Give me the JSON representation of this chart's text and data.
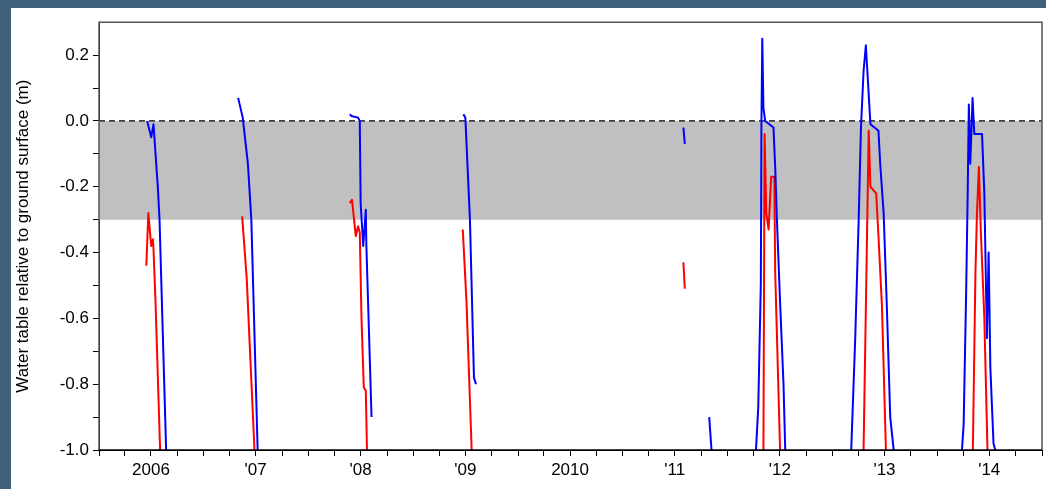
{
  "chart_data": {
    "type": "line",
    "ylabel": "Water table relative to ground surface (m)",
    "xlim": [
      "2006-01-01",
      "2015-01-01"
    ],
    "xticks": [
      {
        "value": "2006-01-01",
        "label": null
      },
      {
        "value": "2006-04-01",
        "label": null
      },
      {
        "value": "2006-07-01",
        "label": "2006"
      },
      {
        "value": "2006-10-01",
        "label": null
      },
      {
        "value": "2007-01-01",
        "label": null
      },
      {
        "value": "2007-04-01",
        "label": null
      },
      {
        "value": "2007-07-01",
        "label": "'07"
      },
      {
        "value": "2007-10-01",
        "label": null
      },
      {
        "value": "2008-01-01",
        "label": null
      },
      {
        "value": "2008-04-01",
        "label": null
      },
      {
        "value": "2008-07-01",
        "label": "'08"
      },
      {
        "value": "2008-10-01",
        "label": null
      },
      {
        "value": "2009-01-01",
        "label": null
      },
      {
        "value": "2009-04-01",
        "label": null
      },
      {
        "value": "2009-07-01",
        "label": "'09"
      },
      {
        "value": "2009-10-01",
        "label": null
      },
      {
        "value": "2010-01-01",
        "label": null
      },
      {
        "value": "2010-04-01",
        "label": null
      },
      {
        "value": "2010-07-01",
        "label": "2010"
      },
      {
        "value": "2010-10-01",
        "label": null
      },
      {
        "value": "2011-01-01",
        "label": null
      },
      {
        "value": "2011-04-01",
        "label": null
      },
      {
        "value": "2011-07-01",
        "label": "'11"
      },
      {
        "value": "2011-10-01",
        "label": null
      },
      {
        "value": "2012-01-01",
        "label": null
      },
      {
        "value": "2012-04-01",
        "label": null
      },
      {
        "value": "2012-07-01",
        "label": "'12"
      },
      {
        "value": "2012-10-01",
        "label": null
      },
      {
        "value": "2013-01-01",
        "label": null
      },
      {
        "value": "2013-04-01",
        "label": null
      },
      {
        "value": "2013-07-01",
        "label": "'13"
      },
      {
        "value": "2013-10-01",
        "label": null
      },
      {
        "value": "2014-01-01",
        "label": null
      },
      {
        "value": "2014-04-01",
        "label": null
      },
      {
        "value": "2014-07-01",
        "label": "'14"
      },
      {
        "value": "2014-10-01",
        "label": null
      },
      {
        "value": "2015-01-01",
        "label": null
      }
    ],
    "ylim": [
      -1.0,
      0.3
    ],
    "yticks": [
      {
        "value": -1.0,
        "label": "-1.0"
      },
      {
        "value": -0.9,
        "label": null
      },
      -0.8,
      {
        "value": -0.7,
        "label": null
      },
      -0.6,
      {
        "value": -0.5,
        "label": null
      },
      -0.4,
      {
        "value": -0.3,
        "label": null
      },
      -0.2,
      {
        "value": -0.1,
        "label": null
      },
      {
        "value": 0,
        "label": "0.0"
      },
      {
        "value": 0.1,
        "label": null
      },
      0.2
    ],
    "grid": false,
    "legend": false,
    "bands": [
      {
        "axis": "y",
        "from": -0.3,
        "to": 0,
        "color": "#c0c0c0"
      }
    ],
    "ref_lines": [
      {
        "axis": "y",
        "value": 0,
        "color": "#000000",
        "line_style": "dashed"
      }
    ],
    "series": [
      {
        "color": "#0000ff",
        "x": [
          "2006-06-18",
          "2006-07-02",
          "2006-07-10",
          "2006-07-25",
          "2006-07-31",
          "2006-08-23",
          "2007-01-01",
          "2007-05-01",
          "2007-05-17",
          "2007-06-04",
          "2007-06-16",
          "2007-07-08",
          "2008-01-01",
          "2008-05-24",
          "2008-05-30",
          "2008-06-22",
          "2008-06-28",
          "2008-07-01",
          "2008-07-10",
          "2008-07-19",
          "2008-07-21",
          "2008-08-08",
          "2009-01-01",
          "2009-06-24",
          "2009-07-01",
          "2009-07-17",
          "2009-07-31",
          "2009-08-07",
          "2010-06-01",
          "2011-07-31",
          "2011-08-05",
          "2011-09-15",
          "2011-10-29",
          "2011-11-06",
          "2012-01-15",
          "2012-04-09",
          "2012-04-17",
          "2012-04-26",
          "2012-04-28",
          "2012-05-01",
          "2012-05-05",
          "2012-05-11",
          "2012-06-09",
          "2012-06-15",
          "2012-06-21",
          "2012-07-02",
          "2012-07-14",
          "2012-07-20",
          "2012-11-01",
          "2013-03-07",
          "2013-03-21",
          "2013-04-02",
          "2013-04-10",
          "2013-04-19",
          "2013-04-27",
          "2013-05-07",
          "2013-05-13",
          "2013-06-10",
          "2013-06-16",
          "2013-06-28",
          "2013-07-09",
          "2013-07-21",
          "2013-08-02",
          "2013-11-01",
          "2014-03-28",
          "2014-04-03",
          "2014-04-12",
          "2014-04-17",
          "2014-04-21",
          "2014-04-26",
          "2014-05-04",
          "2014-05-10",
          "2014-06-06",
          "2014-06-14",
          "2014-06-23",
          "2014-06-29",
          "2014-07-05",
          "2014-07-16",
          "2014-07-22"
        ],
        "values": [
          0.0,
          -0.05,
          -0.01,
          -0.2,
          -0.3,
          -1.0,
          null,
          0.07,
          0.01,
          -0.13,
          -0.3,
          -1.0,
          null,
          0.02,
          0.015,
          0.01,
          0.0,
          -0.25,
          -0.38,
          -0.27,
          -0.38,
          -0.9,
          null,
          0.02,
          0.01,
          -0.3,
          -0.78,
          -0.8,
          null,
          -0.02,
          -0.07,
          null,
          -0.9,
          -1.0,
          null,
          -1.0,
          -0.87,
          -0.49,
          -0.01,
          0.25,
          0.04,
          0.0,
          -0.02,
          -0.14,
          -0.3,
          -0.55,
          -0.8,
          -1.0,
          null,
          -1.0,
          -0.66,
          -0.3,
          -0.02,
          0.15,
          0.23,
          0.08,
          -0.01,
          -0.03,
          -0.13,
          -0.28,
          -0.56,
          -0.9,
          -1.0,
          null,
          -1.0,
          -0.92,
          -0.5,
          -0.22,
          0.05,
          -0.13,
          0.07,
          -0.04,
          -0.04,
          -0.22,
          -0.66,
          -0.4,
          -0.75,
          -0.98,
          -1.0
        ]
      },
      {
        "color": "#ff0000",
        "x": [
          "2006-06-15",
          "2006-06-22",
          "2006-07-02",
          "2006-07-08",
          "2006-07-10",
          "2006-07-17",
          "2006-08-02",
          "2007-01-01",
          "2007-05-15",
          "2007-05-31",
          "2007-06-27",
          "2008-01-01",
          "2008-05-24",
          "2008-06-01",
          "2008-06-14",
          "2008-06-22",
          "2008-06-28",
          "2008-07-04",
          "2008-07-12",
          "2008-07-19",
          "2008-07-23",
          "2009-01-01",
          "2009-06-22",
          "2009-07-05",
          "2009-07-23",
          "2010-06-01",
          "2011-07-31",
          "2011-08-05",
          "2012-01-15",
          "2012-05-05",
          "2012-05-09",
          "2012-05-15",
          "2012-05-23",
          "2012-06-01",
          "2012-06-12",
          "2012-06-15",
          "2012-07-02",
          "2012-11-01",
          "2013-04-19",
          "2013-05-07",
          "2013-05-13",
          "2013-06-02",
          "2013-06-10",
          "2013-06-22",
          "2013-07-06",
          "2013-11-01",
          "2014-05-05",
          "2014-05-14",
          "2014-05-19",
          "2014-05-26",
          "2014-06-02",
          "2014-06-14",
          "2014-06-25"
        ],
        "values": [
          -0.44,
          -0.28,
          -0.38,
          -0.36,
          -0.39,
          -0.55,
          -1.0,
          null,
          -0.29,
          -0.48,
          -1.0,
          null,
          -0.25,
          -0.24,
          -0.35,
          -0.32,
          -0.34,
          -0.6,
          -0.81,
          -0.82,
          -1.0,
          null,
          -0.33,
          -0.55,
          -1.0,
          null,
          -0.43,
          -0.51,
          null,
          -1.0,
          -0.04,
          -0.28,
          -0.33,
          -0.17,
          -0.17,
          -0.46,
          -1.0,
          null,
          -1.0,
          -0.03,
          -0.2,
          -0.22,
          -0.35,
          -0.56,
          -1.0,
          null,
          -1.0,
          -0.46,
          -0.29,
          -0.14,
          -0.34,
          -0.6,
          -1.0
        ]
      }
    ]
  }
}
